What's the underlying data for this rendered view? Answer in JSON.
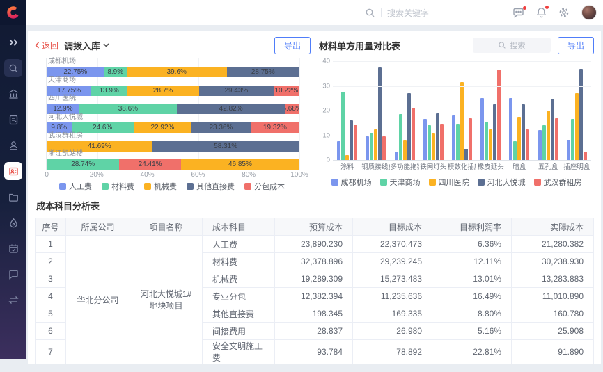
{
  "colors": {
    "accent_blue": "#4f7df9",
    "danger_red": "#e8564d",
    "sidebar_bg": "#111a33",
    "series_blue": "#7b96ee",
    "series_green": "#5fd3a6",
    "series_yellow": "#fbb222",
    "series_slate": "#5c6f92",
    "series_red": "#f0706a"
  },
  "sidebar": {
    "icons": [
      "double-chevron-expand",
      "search",
      "bank-building",
      "document-edit",
      "user-stamp",
      "id-card-active",
      "folder",
      "droplet",
      "calendar",
      "chat-square",
      "transfer-flow"
    ]
  },
  "header": {
    "search_placeholder": "搜索关键字",
    "icons": [
      "message-dots",
      "bell",
      "gear",
      "avatar"
    ]
  },
  "left_chart": {
    "back_label": "返回",
    "title": "调拨入库",
    "export_label": "导出",
    "x_ticks": [
      "0",
      "20%",
      "40%",
      "60%",
      "80%",
      "100%"
    ],
    "legend": [
      {
        "name": "人工费",
        "color": "#7b96ee"
      },
      {
        "name": "材料费",
        "color": "#5fd3a6"
      },
      {
        "name": "机械费",
        "color": "#fbb222"
      },
      {
        "name": "其他直接费",
        "color": "#5c6f92"
      },
      {
        "name": "分包成本",
        "color": "#f0706a"
      }
    ],
    "chart_data": {
      "type": "bar",
      "orientation": "horizontal-stacked",
      "xlim": [
        0,
        100
      ],
      "rows": [
        {
          "label": "成都机场",
          "segments": [
            {
              "series": "人工费",
              "value": 22.75
            },
            {
              "series": "材料费",
              "value": 8.9
            },
            {
              "series": "机械费",
              "value": 39.6
            },
            {
              "series": "其他直接费",
              "value": 28.75
            }
          ]
        },
        {
          "label": "天津商场",
          "segments": [
            {
              "series": "人工费",
              "value": 17.75
            },
            {
              "series": "材料费",
              "value": 13.9
            },
            {
              "series": "机械费",
              "value": 28.7
            },
            {
              "series": "其他直接费",
              "value": 29.43
            },
            {
              "series": "分包成本",
              "value": 10.22
            }
          ]
        },
        {
          "label": "四川医院",
          "segments": [
            {
              "series": "人工费",
              "value": 12.9
            },
            {
              "series": "材料费",
              "value": 38.6
            },
            {
              "series": "其他直接费",
              "value": 42.82
            },
            {
              "series": "分包成本",
              "value": 5.68
            }
          ]
        },
        {
          "label": "河北大悦城",
          "segments": [
            {
              "series": "人工费",
              "value": 9.8
            },
            {
              "series": "材料费",
              "value": 24.6
            },
            {
              "series": "机械费",
              "value": 22.92
            },
            {
              "series": "其他直接费",
              "value": 23.36
            },
            {
              "series": "分包成本",
              "value": 19.32
            }
          ]
        },
        {
          "label": "武汉群租房",
          "segments": [
            {
              "series": "机械费",
              "value": 41.69
            },
            {
              "series": "其他直接费",
              "value": 58.31
            }
          ]
        },
        {
          "label": "浙江凯站楼",
          "segments": [
            {
              "series": "材料费",
              "value": 28.74
            },
            {
              "series": "分包成本",
              "value": 24.41
            },
            {
              "series": "机械费",
              "value": 46.85
            }
          ]
        }
      ]
    }
  },
  "right_chart": {
    "title": "材料单方用量对比表",
    "search_placeholder": "搜索",
    "export_label": "导出",
    "chart_data": {
      "type": "bar",
      "orientation": "vertical-grouped",
      "ylim": [
        0,
        40
      ],
      "y_ticks": [
        0,
        10,
        20,
        30,
        40
      ],
      "categories": [
        "涂料",
        "钢质接线盒",
        "多功能拖链",
        "铁网灯头",
        "模数化插座",
        "橡皮延头",
        "暗盒",
        "五孔盒",
        "插座明盒"
      ],
      "series": [
        {
          "name": "成都机场",
          "color": "#7b96ee",
          "values": [
            7.5,
            9.5,
            3.5,
            16.5,
            18,
            25,
            25,
            12,
            8
          ]
        },
        {
          "name": "天津商场",
          "color": "#5fd3a6",
          "values": [
            27.5,
            11,
            18.5,
            14,
            14.5,
            15.5,
            7.5,
            14,
            16.5
          ]
        },
        {
          "name": "四川医院",
          "color": "#fbb222",
          "values": [
            2,
            12.5,
            8,
            11,
            31.5,
            12.5,
            17.5,
            20,
            27
          ]
        },
        {
          "name": "河北大悦城",
          "color": "#5c6f92",
          "values": [
            16,
            37.5,
            27,
            19,
            4.5,
            22.5,
            22.5,
            24.5,
            37
          ]
        },
        {
          "name": "武汉群租房",
          "color": "#f0706a",
          "values": [
            14,
            9.5,
            21,
            14.5,
            17,
            36.5,
            12.5,
            17,
            3.5
          ]
        }
      ]
    }
  },
  "table": {
    "title": "成本科目分析表",
    "headers": [
      "序号",
      "所属公司",
      "项目名称",
      "成本科目",
      "预算成本",
      "目标成本",
      "目标利润率",
      "实际成本"
    ],
    "company": "华北分公司",
    "project": "河北大悦城1#地块项目",
    "rows": [
      {
        "no": "1",
        "subject": "人工费",
        "budget": "23,890.230",
        "target": "22,370.473",
        "margin": "6.36%",
        "actual": "21,280.382"
      },
      {
        "no": "2",
        "subject": "材料费",
        "budget": "32,378.896",
        "target": "29,239.245",
        "margin": "12.11%",
        "actual": "30,238.930"
      },
      {
        "no": "3",
        "subject": "机械费",
        "budget": "19,289.309",
        "target": "15,273.483",
        "margin": "13.01%",
        "actual": "13,283.883"
      },
      {
        "no": "4",
        "subject": "专业分包",
        "budget": "12,382.394",
        "target": "11,235.636",
        "margin": "16.49%",
        "actual": "11,010.890"
      },
      {
        "no": "5",
        "subject": "其他直接费",
        "budget": "198.345",
        "target": "169.335",
        "margin": "8.80%",
        "actual": "160.780"
      },
      {
        "no": "6",
        "subject": "间接费用",
        "budget": "28.837",
        "target": "26.980",
        "margin": "5.16%",
        "actual": "25.908"
      },
      {
        "no": "7",
        "subject": "安全文明施工费",
        "budget": "93.784",
        "target": "78.892",
        "margin": "22.81%",
        "actual": "91.890"
      }
    ]
  }
}
